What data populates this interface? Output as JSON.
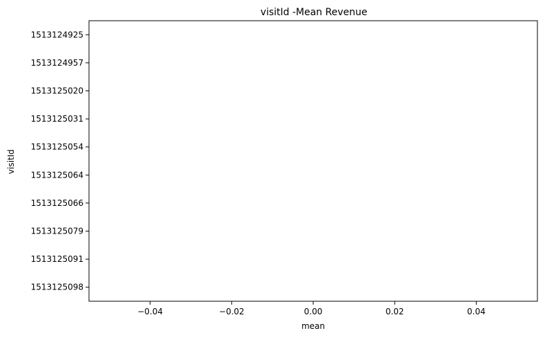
{
  "chart_data": {
    "type": "bar",
    "orientation": "horizontal",
    "title": "visitId -Mean Revenue",
    "xlabel": "mean",
    "ylabel": "visitId",
    "categories": [
      "1513124925",
      "1513124957",
      "1513125020",
      "1513125031",
      "1513125054",
      "1513125064",
      "1513125066",
      "1513125079",
      "1513125091",
      "1513125098"
    ],
    "values": [
      0,
      0,
      0,
      0,
      0,
      0,
      0,
      0,
      0,
      0
    ],
    "xlim": [
      -0.055,
      0.055
    ],
    "xticks": [
      -0.04,
      -0.02,
      0.0,
      0.02,
      0.04
    ],
    "xtick_labels": [
      "−0.04",
      "−0.02",
      "0.00",
      "0.02",
      "0.04"
    ],
    "grid": false,
    "colors": {
      "axes": "#000000",
      "background": "#ffffff",
      "bar": "#1f77b4"
    }
  }
}
